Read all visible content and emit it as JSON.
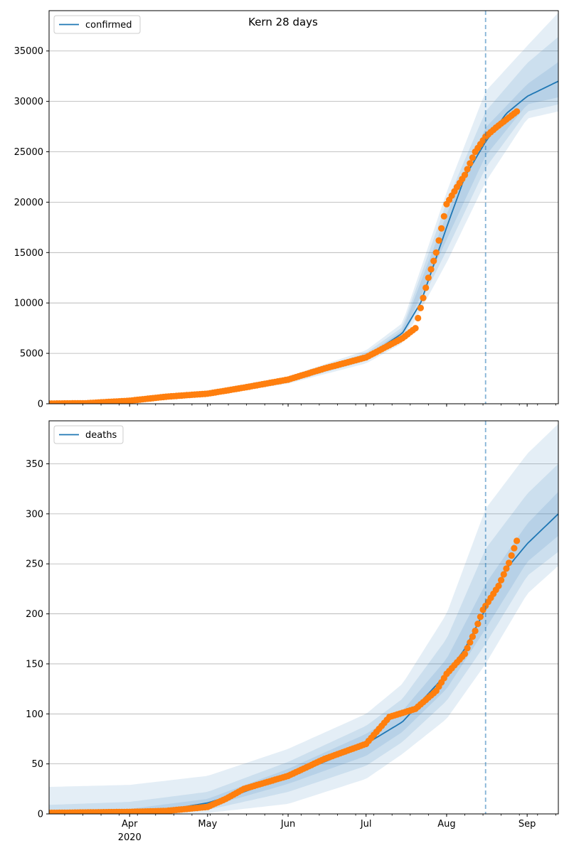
{
  "figure": {
    "title": "Kern 28 days"
  },
  "colors": {
    "model": "#1f77b4",
    "observed": "#ff7f0e",
    "grid": "#b0b0b0",
    "band": "#1f77b4"
  },
  "chart_data": [
    {
      "type": "line",
      "title": "Kern 28 days",
      "xlabel": "",
      "ylabel": "",
      "x_range": [
        "2020-03-01",
        "2020-09-13"
      ],
      "ylim": [
        0,
        39000
      ],
      "y_ticks": [
        0,
        5000,
        10000,
        15000,
        20000,
        25000,
        30000,
        35000
      ],
      "x_tick_labels": [],
      "grid": "horizontal",
      "legend": {
        "placement": "top-left",
        "entries": [
          "confirmed"
        ]
      },
      "forecast_start": "2020-08-16",
      "series": [
        {
          "name": "confirmed",
          "kind": "median-line",
          "x": [
            "2020-03-01",
            "2020-03-15",
            "2020-04-01",
            "2020-04-15",
            "2020-05-01",
            "2020-05-15",
            "2020-06-01",
            "2020-06-15",
            "2020-07-01",
            "2020-07-15",
            "2020-07-22",
            "2020-08-01",
            "2020-08-08",
            "2020-08-16",
            "2020-08-24",
            "2020-09-01",
            "2020-09-13"
          ],
          "values": [
            20,
            40,
            300,
            600,
            1000,
            1500,
            2300,
            3300,
            4600,
            7000,
            10000,
            17500,
            22500,
            26000,
            28800,
            30500,
            32000
          ]
        },
        {
          "name": "",
          "kind": "observed-points",
          "x": [
            "2020-03-01",
            "2020-03-15",
            "2020-04-01",
            "2020-04-15",
            "2020-05-01",
            "2020-05-15",
            "2020-06-01",
            "2020-06-15",
            "2020-07-01",
            "2020-07-15",
            "2020-07-20",
            "2020-07-25",
            "2020-07-28",
            "2020-08-01",
            "2020-08-05",
            "2020-08-08",
            "2020-08-12",
            "2020-08-16",
            "2020-08-20",
            "2020-08-25",
            "2020-08-28"
          ],
          "values": [
            20,
            50,
            300,
            700,
            1000,
            1600,
            2400,
            3500,
            4600,
            6500,
            7500,
            12500,
            15000,
            19800,
            21500,
            22700,
            25000,
            26500,
            27400,
            28400,
            29000
          ]
        }
      ],
      "bands": [
        {
          "x": [
            "2020-03-01",
            "2020-04-01",
            "2020-05-01",
            "2020-06-01",
            "2020-07-01",
            "2020-07-15",
            "2020-08-01",
            "2020-08-16",
            "2020-09-01",
            "2020-09-13"
          ],
          "lower": [
            0,
            200,
            800,
            2000,
            4000,
            6000,
            14000,
            22000,
            28300,
            29000
          ],
          "upper": [
            100,
            500,
            1300,
            2700,
            5300,
            8000,
            21000,
            31000,
            35500,
            38800
          ]
        },
        {
          "x": [
            "2020-03-01",
            "2020-04-01",
            "2020-05-01",
            "2020-06-01",
            "2020-07-01",
            "2020-07-15",
            "2020-08-01",
            "2020-08-16",
            "2020-09-01",
            "2020-09-13"
          ],
          "lower": [
            0,
            240,
            870,
            2100,
            4250,
            6400,
            15200,
            23400,
            29000,
            29700
          ],
          "upper": [
            70,
            420,
            1180,
            2550,
            5050,
            7600,
            20000,
            29000,
            33800,
            36400
          ]
        },
        {
          "x": [
            "2020-03-01",
            "2020-04-01",
            "2020-05-01",
            "2020-06-01",
            "2020-07-01",
            "2020-07-15",
            "2020-08-01",
            "2020-08-16",
            "2020-09-01",
            "2020-09-13"
          ],
          "lower": [
            5,
            270,
            930,
            2200,
            4450,
            6700,
            16300,
            24600,
            29700,
            30400
          ],
          "upper": [
            45,
            350,
            1080,
            2420,
            4780,
            7300,
            18800,
            27400,
            31700,
            33900
          ]
        }
      ]
    },
    {
      "type": "line",
      "title": "",
      "xlabel": "",
      "ylabel": "",
      "x_range": [
        "2020-03-01",
        "2020-09-13"
      ],
      "ylim": [
        0,
        393
      ],
      "y_ticks": [
        0,
        50,
        100,
        150,
        200,
        250,
        300,
        350
      ],
      "x_tick_labels": [
        {
          "date": "2020-04-01",
          "label": "Apr"
        },
        {
          "date": "2020-05-01",
          "label": "May"
        },
        {
          "date": "2020-06-01",
          "label": "Jun"
        },
        {
          "date": "2020-07-01",
          "label": "Jul"
        },
        {
          "date": "2020-08-01",
          "label": "Aug"
        },
        {
          "date": "2020-09-01",
          "label": "Sep"
        }
      ],
      "x_year_label": "2020",
      "grid": "horizontal",
      "legend": {
        "placement": "top-left",
        "entries": [
          "deaths"
        ]
      },
      "forecast_start": "2020-08-16",
      "series": [
        {
          "name": "deaths",
          "kind": "median-line",
          "x": [
            "2020-03-01",
            "2020-04-01",
            "2020-04-15",
            "2020-05-01",
            "2020-05-15",
            "2020-06-01",
            "2020-06-15",
            "2020-07-01",
            "2020-07-15",
            "2020-08-01",
            "2020-08-08",
            "2020-08-16",
            "2020-08-24",
            "2020-09-01",
            "2020-09-13"
          ],
          "values": [
            0,
            2,
            4,
            11,
            22,
            38,
            52,
            70,
            92,
            140,
            165,
            205,
            245,
            270,
            300
          ]
        },
        {
          "name": "",
          "kind": "observed-points",
          "x": [
            "2020-03-01",
            "2020-04-01",
            "2020-04-15",
            "2020-05-01",
            "2020-05-08",
            "2020-05-15",
            "2020-06-01",
            "2020-06-15",
            "2020-07-01",
            "2020-07-10",
            "2020-07-20",
            "2020-07-28",
            "2020-08-01",
            "2020-08-08",
            "2020-08-12",
            "2020-08-15",
            "2020-08-18",
            "2020-08-21",
            "2020-08-25",
            "2020-08-28"
          ],
          "values": [
            1,
            2,
            3,
            7,
            15,
            25,
            38,
            55,
            70,
            97,
            105,
            123,
            140,
            160,
            183,
            204,
            216,
            228,
            251,
            273
          ]
        }
      ],
      "bands": [
        {
          "x": [
            "2020-03-01",
            "2020-04-01",
            "2020-05-01",
            "2020-06-01",
            "2020-07-01",
            "2020-07-15",
            "2020-08-01",
            "2020-08-16",
            "2020-09-01",
            "2020-09-13"
          ],
          "lower": [
            0,
            0,
            1,
            10,
            35,
            60,
            95,
            150,
            220,
            248
          ],
          "upper": [
            27,
            29,
            38,
            65,
            100,
            130,
            200,
            305,
            360,
            390
          ]
        },
        {
          "x": [
            "2020-03-01",
            "2020-04-01",
            "2020-05-01",
            "2020-06-01",
            "2020-07-01",
            "2020-07-15",
            "2020-08-01",
            "2020-08-16",
            "2020-09-01",
            "2020-09-13"
          ],
          "lower": [
            0,
            0,
            4,
            22,
            48,
            72,
            113,
            170,
            238,
            262
          ],
          "upper": [
            9,
            12,
            22,
            52,
            88,
            115,
            175,
            265,
            320,
            350
          ]
        },
        {
          "x": [
            "2020-03-01",
            "2020-04-01",
            "2020-05-01",
            "2020-06-01",
            "2020-07-01",
            "2020-07-15",
            "2020-08-01",
            "2020-08-16",
            "2020-09-01",
            "2020-09-13"
          ],
          "lower": [
            0,
            1,
            7,
            30,
            58,
            82,
            125,
            185,
            252,
            278
          ],
          "upper": [
            3,
            5,
            15,
            45,
            80,
            103,
            155,
            230,
            290,
            322
          ]
        }
      ]
    }
  ]
}
